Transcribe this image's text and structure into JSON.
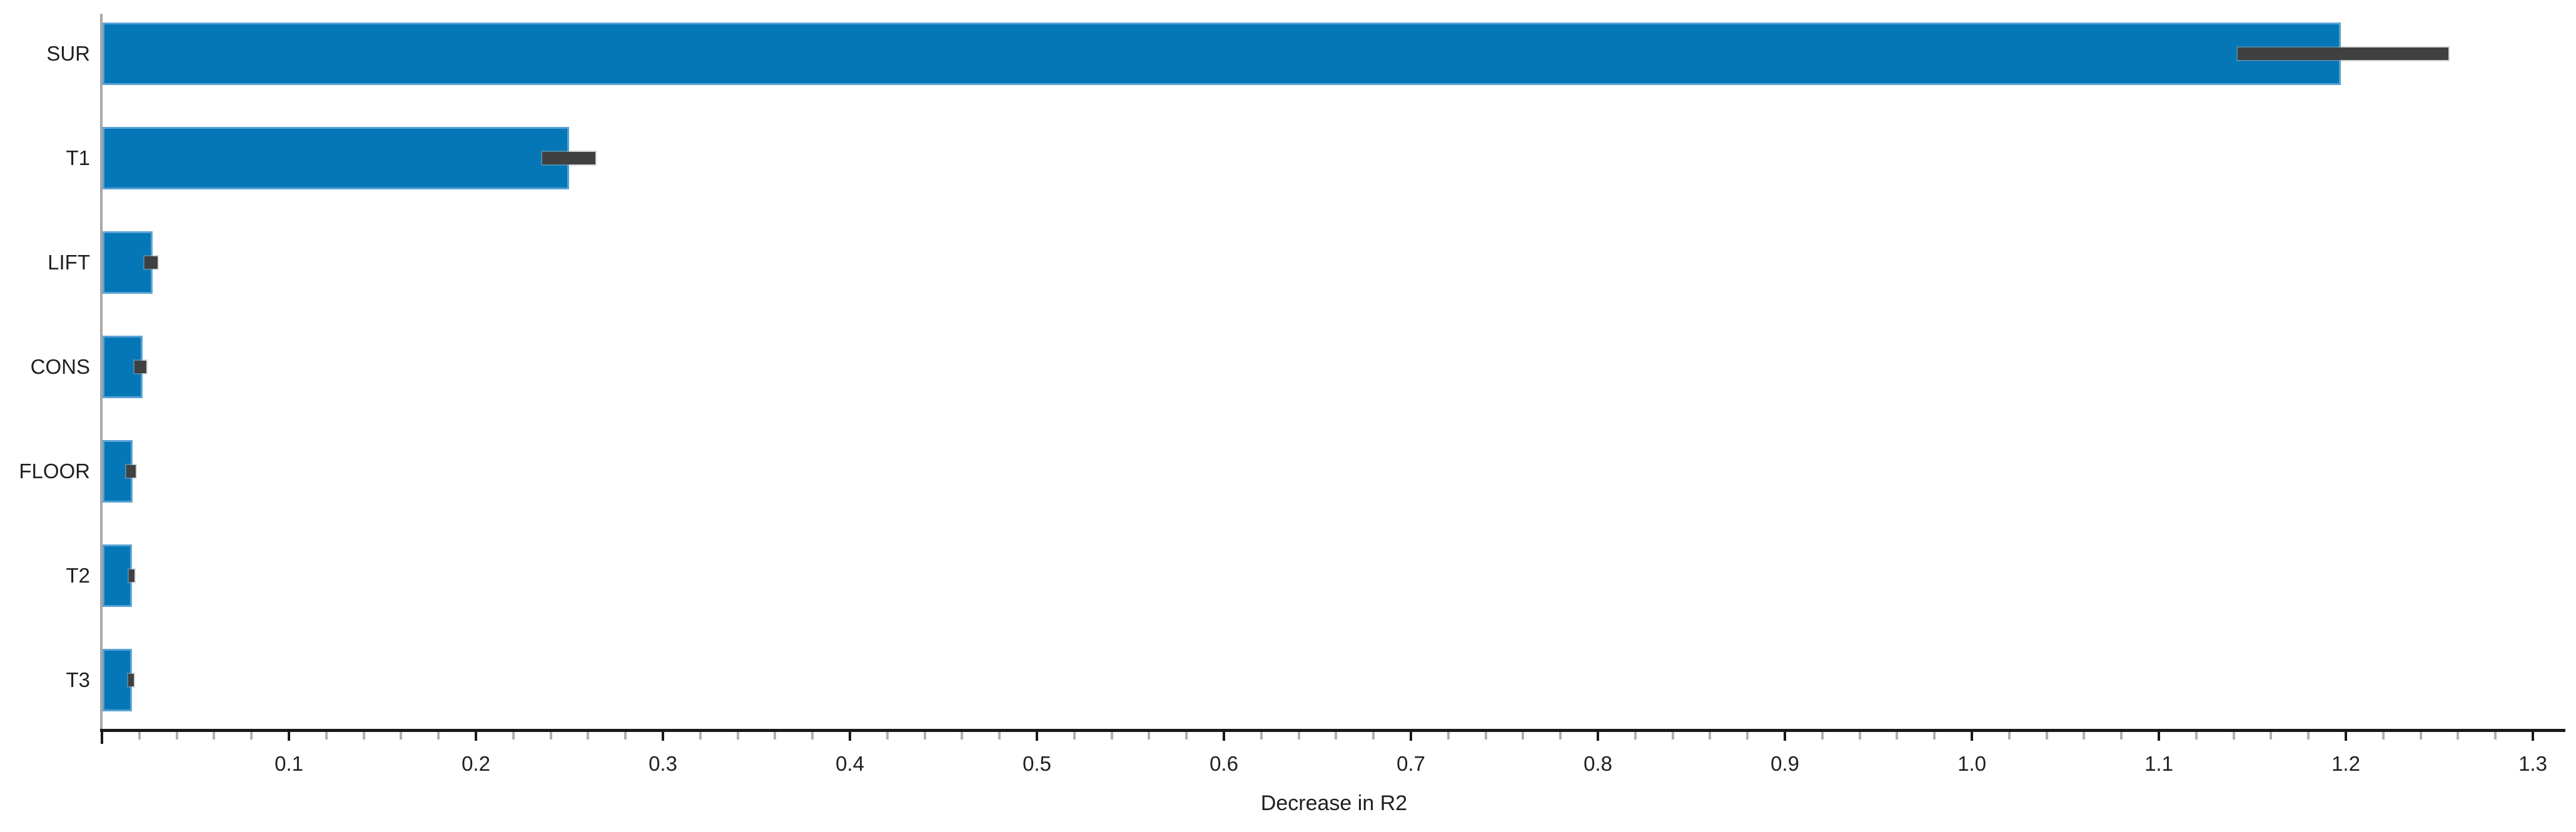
{
  "chart_data": {
    "type": "bar",
    "orientation": "horizontal",
    "title": "",
    "xlabel": "Decrease in R2",
    "ylabel": "",
    "categories": [
      "SUR",
      "T1",
      "LIFT",
      "CONS",
      "FLOOR",
      "T2",
      "T3"
    ],
    "values": [
      1.197,
      0.2495,
      0.0268,
      0.0214,
      0.0161,
      0.0157,
      0.0156
    ],
    "error_low": [
      1.142,
      0.2355,
      0.0227,
      0.0174,
      0.013,
      0.0144,
      0.014
    ],
    "error_high": [
      1.2546,
      0.2639,
      0.0298,
      0.0237,
      0.0181,
      0.0174,
      0.0171
    ],
    "xlim": [
      0,
      1.3185
    ],
    "x_major_ticks": [
      {
        "value": 0.0,
        "label": ""
      },
      {
        "value": 0.1,
        "label": "0.1"
      },
      {
        "value": 0.2,
        "label": "0.2"
      },
      {
        "value": 0.3,
        "label": "0.3"
      },
      {
        "value": 0.4,
        "label": "0.4"
      },
      {
        "value": 0.5,
        "label": "0.5"
      },
      {
        "value": 0.6,
        "label": "0.6"
      },
      {
        "value": 0.7,
        "label": "0.7"
      },
      {
        "value": 0.8,
        "label": "0.8"
      },
      {
        "value": 0.9,
        "label": "0.9"
      },
      {
        "value": 1.0,
        "label": "1.0"
      },
      {
        "value": 1.1,
        "label": "1.1"
      },
      {
        "value": 1.2,
        "label": "1.2"
      },
      {
        "value": 1.3,
        "label": "1.3"
      }
    ],
    "minor_tick_step": 0.02,
    "minor_tick_max": 1.3,
    "grid": false,
    "legend": null,
    "colors": {
      "bar_fill": "#0577b7",
      "bar_edge": "#5aa2d4",
      "error_bar": "#404040",
      "error_halo": "#a0a0a0",
      "axis_line": "#1a1a1a",
      "major_tick": "#1a1a1a",
      "minor_tick": "#b0b0b0",
      "left_spine": "#a8a8a8",
      "text": "#1f1f1f",
      "background": "#ffffff"
    }
  }
}
